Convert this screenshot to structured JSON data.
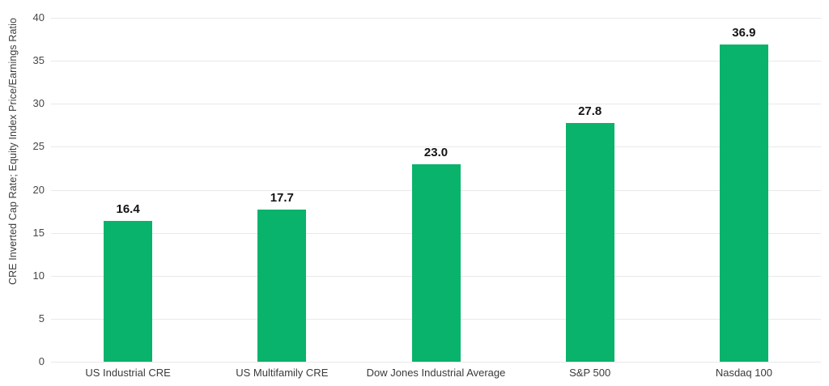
{
  "chart_data": {
    "type": "bar",
    "title": "",
    "categories": [
      "US Industrial CRE",
      "US Multifamily CRE",
      "Dow Jones Industrial Average",
      "S&P 500",
      "Nasdaq 100"
    ],
    "values": [
      16.4,
      17.7,
      23.0,
      27.8,
      36.9
    ],
    "value_labels": [
      "16.4",
      "17.7",
      "23.0",
      "27.8",
      "36.9"
    ],
    "xlabel": "",
    "ylabel": "CRE Inverted Cap Rate; Equity Index Price/Earnings Ratio",
    "ylim": [
      0,
      40
    ],
    "yticks": [
      0,
      5,
      10,
      15,
      20,
      25,
      30,
      35,
      40
    ],
    "grid": true,
    "legend": false,
    "colors": {
      "bar": "#0ab36b",
      "gridline": "#e9e9e9",
      "tick_label": "#474747",
      "category_label": "#3a3a3a",
      "value_label": "#141414",
      "background": "#ffffff"
    }
  }
}
